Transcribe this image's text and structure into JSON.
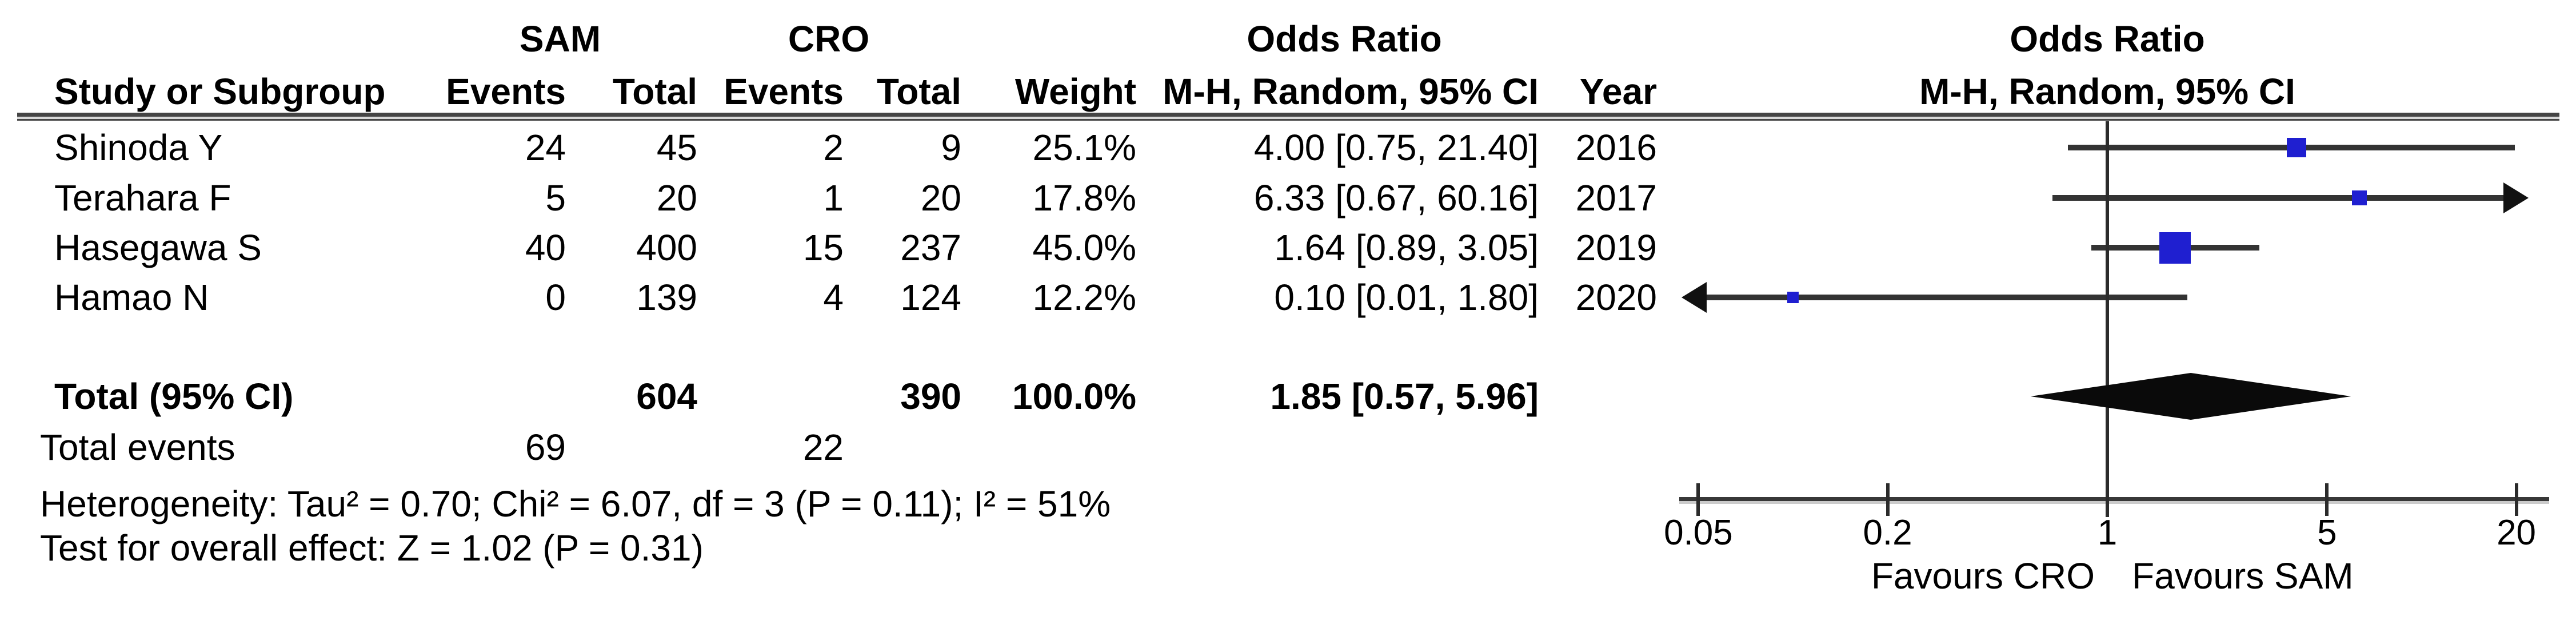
{
  "header": {
    "group_sam": "SAM",
    "group_cro": "CRO",
    "odds_ratio": "Odds Ratio",
    "study": "Study or Subgroup",
    "events": "Events",
    "total": "Total",
    "weight": "Weight",
    "mh_ci": "M-H, Random, 95% CI",
    "year": "Year"
  },
  "plot_header": {
    "odds_ratio": "Odds Ratio",
    "mh_ci": "M-H, Random, 95% CI"
  },
  "total_row": {
    "label": "Total (95% CI)",
    "total_sam": "604",
    "total_cro": "390",
    "weight": "100.0%",
    "or_ci": "1.85 [0.57, 5.96]"
  },
  "footer": {
    "total_events_label": "Total events",
    "total_events_sam": "69",
    "total_events_cro": "22",
    "heterogeneity": "Heterogeneity: Tau² = 0.70; Chi² = 6.07, df = 3 (P = 0.11); I² = 51%",
    "overall_effect": "Test for overall effect: Z = 1.02 (P = 0.31)"
  },
  "chart_data": {
    "type": "forest",
    "effect_measure": "Odds Ratio",
    "method": "M-H, Random, 95% CI",
    "x_scale": "log",
    "axis_ticks": [
      0.05,
      0.2,
      1,
      5,
      20
    ],
    "axis_labels": [
      "0.05",
      "0.2",
      "1",
      "5",
      "20"
    ],
    "favours_left": "Favours CRO",
    "favours_right": "Favours SAM",
    "studies": [
      {
        "name": "Shinoda Y",
        "events_sam": "24",
        "total_sam": "45",
        "events_cro": "2",
        "total_cro": "9",
        "weight": "25.1%",
        "weight_pct": 25.1,
        "or": 4.0,
        "ci_low": 0.75,
        "ci_high": 21.4,
        "or_ci": "4.00 [0.75, 21.40]",
        "year": "2016",
        "arrow_left": false,
        "arrow_right": false
      },
      {
        "name": "Terahara F",
        "events_sam": "5",
        "total_sam": "20",
        "events_cro": "1",
        "total_cro": "20",
        "weight": "17.8%",
        "weight_pct": 17.8,
        "or": 6.33,
        "ci_low": 0.67,
        "ci_high": 60.16,
        "or_ci": "6.33 [0.67, 60.16]",
        "year": "2017",
        "arrow_left": false,
        "arrow_right": true
      },
      {
        "name": "Hasegawa S",
        "events_sam": "40",
        "total_sam": "400",
        "events_cro": "15",
        "total_cro": "237",
        "weight": "45.0%",
        "weight_pct": 45.0,
        "or": 1.64,
        "ci_low": 0.89,
        "ci_high": 3.05,
        "or_ci": "1.64 [0.89, 3.05]",
        "year": "2019",
        "arrow_left": false,
        "arrow_right": false
      },
      {
        "name": "Hamao N",
        "events_sam": "0",
        "total_sam": "139",
        "events_cro": "4",
        "total_cro": "124",
        "weight": "12.2%",
        "weight_pct": 12.2,
        "or": 0.1,
        "ci_low": 0.01,
        "ci_high": 1.8,
        "or_ci": "0.10 [0.01, 1.80]",
        "year": "2020",
        "arrow_left": true,
        "arrow_right": false
      }
    ],
    "total": {
      "label": "Total (95% CI)",
      "total_sam": 604,
      "total_cro": 390,
      "weight_pct": 100.0,
      "or": 1.85,
      "ci_low": 0.57,
      "ci_high": 5.96
    },
    "total_events": {
      "sam": 69,
      "cro": 22
    },
    "heterogeneity": "Heterogeneity: Tau² = 0.70; Chi² = 6.07, df = 3 (P = 0.11); I² = 51%",
    "overall_effect": "Test for overall effect: Z = 1.02 (P = 0.31)"
  }
}
